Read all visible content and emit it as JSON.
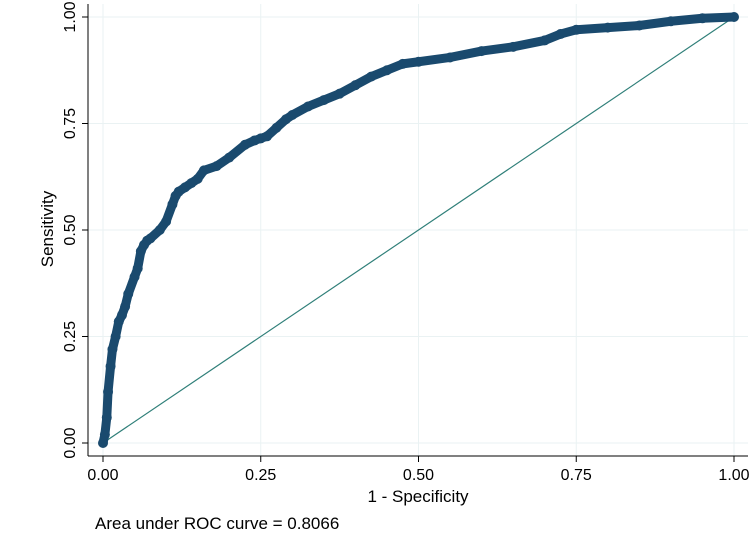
{
  "chart_data": {
    "type": "line",
    "title": "",
    "xlabel": "1 - Specificity",
    "ylabel": "Sensitivity",
    "xlim": [
      0,
      1
    ],
    "ylim": [
      0,
      1
    ],
    "x_ticks": [
      "0.00",
      "0.25",
      "0.50",
      "0.75",
      "1.00"
    ],
    "y_ticks": [
      "0.00",
      "0.25",
      "0.50",
      "0.75",
      "1.00"
    ],
    "grid": true,
    "legend": "none",
    "caption": "Area under ROC curve = 0.8066",
    "colors": {
      "curve": "#1a4a6e",
      "reference": "#2f7f79",
      "grid": "#eaf2f3"
    },
    "series": [
      {
        "x": [
          0.0,
          0.003,
          0.006,
          0.008,
          0.012,
          0.015,
          0.02,
          0.025,
          0.03,
          0.035,
          0.04,
          0.05,
          0.055,
          0.06,
          0.065,
          0.07,
          0.075,
          0.09,
          0.1,
          0.11,
          0.115,
          0.12,
          0.13,
          0.14,
          0.15,
          0.16,
          0.18,
          0.2,
          0.225,
          0.24,
          0.25,
          0.26,
          0.275,
          0.29,
          0.3,
          0.325,
          0.35,
          0.375,
          0.4,
          0.425,
          0.45,
          0.475,
          0.5,
          0.55,
          0.6,
          0.65,
          0.7,
          0.725,
          0.75,
          0.8,
          0.85,
          0.9,
          0.95,
          1.0
        ],
        "y": [
          0.0,
          0.02,
          0.06,
          0.12,
          0.18,
          0.22,
          0.25,
          0.285,
          0.3,
          0.32,
          0.35,
          0.39,
          0.41,
          0.45,
          0.465,
          0.475,
          0.48,
          0.5,
          0.52,
          0.56,
          0.58,
          0.59,
          0.6,
          0.61,
          0.62,
          0.64,
          0.65,
          0.67,
          0.7,
          0.71,
          0.715,
          0.72,
          0.74,
          0.76,
          0.77,
          0.79,
          0.805,
          0.82,
          0.84,
          0.86,
          0.875,
          0.89,
          0.895,
          0.905,
          0.92,
          0.93,
          0.945,
          0.96,
          0.97,
          0.975,
          0.98,
          0.99,
          0.997,
          1.0
        ]
      },
      {
        "x": [
          0,
          1
        ],
        "y": [
          0,
          1
        ]
      }
    ]
  }
}
